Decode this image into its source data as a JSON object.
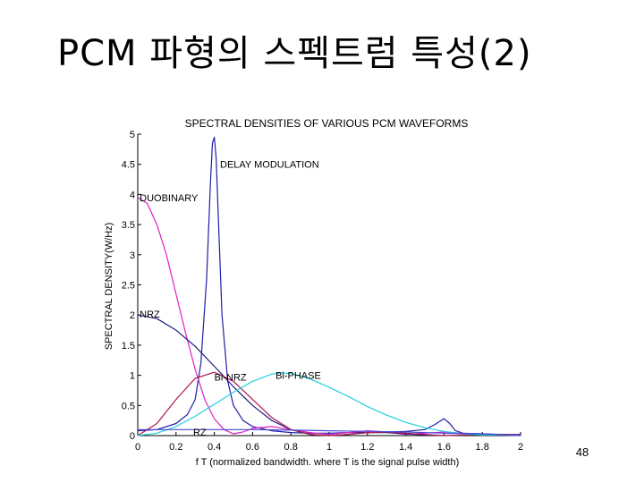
{
  "slide": {
    "title": "PCM 파형의 스펙트럼 특성(2)",
    "page_number": "48"
  },
  "chart_data": {
    "type": "line",
    "title": "SPECTRAL DENSITIES OF VARIOUS PCM WAVEFORMS",
    "xlabel": "f T (normalized bandwidth. where T is  the signal pulse width)",
    "ylabel": "SPECTRAL DENSITY(W/Hz)",
    "xlim": [
      0,
      2
    ],
    "ylim": [
      0,
      5
    ],
    "x_ticks": [
      "0",
      "0.2",
      "0.4",
      "0.6",
      "0.8",
      "1",
      "1.2",
      "1.4",
      "1.6",
      "1.8",
      "2"
    ],
    "y_ticks": [
      "0",
      "0.5",
      "1",
      "1.5",
      "2",
      "2.5",
      "3",
      "3.5",
      "4",
      "4.5",
      "5"
    ],
    "grid": false,
    "legend": "none",
    "series": [
      {
        "name": "DELAY MODULATION",
        "color": "#1f1fa8",
        "x": [
          0,
          0.1,
          0.2,
          0.26,
          0.3,
          0.33,
          0.36,
          0.38,
          0.39,
          0.4,
          0.41,
          0.42,
          0.44,
          0.47,
          0.5,
          0.55,
          0.6,
          0.7,
          0.8,
          0.9,
          1.0,
          1.1,
          1.2,
          1.3,
          1.4,
          1.5,
          1.55,
          1.6,
          1.63,
          1.66,
          1.7,
          1.8,
          1.9,
          2.0
        ],
        "y": [
          0.08,
          0.1,
          0.2,
          0.35,
          0.6,
          1.2,
          2.6,
          4.2,
          4.85,
          4.95,
          4.6,
          3.7,
          2.0,
          0.9,
          0.5,
          0.25,
          0.15,
          0.08,
          0.05,
          0.04,
          0.04,
          0.05,
          0.05,
          0.06,
          0.07,
          0.1,
          0.18,
          0.28,
          0.2,
          0.08,
          0.04,
          0.03,
          0.02,
          0.02
        ]
      },
      {
        "name": "DUOBINARY",
        "color": "#e020c0",
        "x": [
          0,
          0.05,
          0.1,
          0.15,
          0.2,
          0.25,
          0.3,
          0.35,
          0.4,
          0.45,
          0.5,
          0.55,
          0.6,
          0.7,
          0.8,
          0.9,
          1.0,
          1.1,
          1.2,
          1.3,
          1.4,
          1.5,
          1.6,
          1.7,
          1.8,
          1.9,
          2.0
        ],
        "y": [
          3.95,
          3.85,
          3.5,
          3.0,
          2.35,
          1.7,
          1.1,
          0.6,
          0.28,
          0.1,
          0.03,
          0.06,
          0.12,
          0.15,
          0.1,
          0.05,
          0.02,
          0.05,
          0.08,
          0.06,
          0.02,
          0.04,
          0.06,
          0.04,
          0.02,
          0.02,
          0.01
        ]
      },
      {
        "name": "NRZ",
        "color": "#1a1a80",
        "x": [
          0,
          0.1,
          0.2,
          0.3,
          0.4,
          0.5,
          0.6,
          0.7,
          0.8,
          0.9,
          1.0,
          1.1,
          1.2,
          1.3,
          1.4,
          1.5,
          1.6,
          1.7,
          1.8,
          1.9,
          2.0
        ],
        "y": [
          2.0,
          1.94,
          1.75,
          1.48,
          1.15,
          0.81,
          0.5,
          0.25,
          0.1,
          0.02,
          0.0,
          0.02,
          0.05,
          0.05,
          0.03,
          0.01,
          0.0,
          0.01,
          0.02,
          0.02,
          0.01
        ]
      },
      {
        "name": "Bi-NRZ",
        "color": "#b01848",
        "x": [
          0,
          0.1,
          0.2,
          0.3,
          0.4,
          0.5,
          0.6,
          0.7,
          0.8,
          0.9,
          1.0,
          1.1,
          1.2,
          1.3,
          1.4,
          1.5,
          1.6,
          1.7,
          1.8,
          1.9,
          2.0
        ],
        "y": [
          0.0,
          0.2,
          0.6,
          0.95,
          1.05,
          0.9,
          0.6,
          0.3,
          0.1,
          0.02,
          0.0,
          0.02,
          0.05,
          0.06,
          0.04,
          0.02,
          0.0,
          0.01,
          0.02,
          0.02,
          0.01
        ]
      },
      {
        "name": "Bi-PHASE",
        "color": "#20d0e0",
        "x": [
          0,
          0.1,
          0.2,
          0.3,
          0.4,
          0.5,
          0.6,
          0.7,
          0.75,
          0.8,
          0.9,
          1.0,
          1.1,
          1.2,
          1.3,
          1.4,
          1.5,
          1.6,
          1.7,
          1.8,
          1.9,
          2.0
        ],
        "y": [
          0.0,
          0.04,
          0.15,
          0.32,
          0.52,
          0.72,
          0.9,
          1.02,
          1.04,
          1.03,
          0.94,
          0.8,
          0.65,
          0.48,
          0.34,
          0.22,
          0.13,
          0.07,
          0.03,
          0.01,
          0.01,
          0.0
        ]
      },
      {
        "name": "RZ",
        "color": "#4848d8",
        "x": [
          0,
          0.2,
          0.4,
          0.6,
          0.8,
          1.0,
          1.2,
          1.4,
          1.6,
          1.8,
          2.0
        ],
        "y": [
          0.1,
          0.1,
          0.1,
          0.1,
          0.09,
          0.08,
          0.07,
          0.06,
          0.04,
          0.03,
          0.0
        ]
      }
    ],
    "annotations": [
      {
        "text": "DELAY MODULATION",
        "x": 0.43,
        "y": 4.5
      },
      {
        "text": "DUOBINARY",
        "x": 0.01,
        "y": 3.95
      },
      {
        "text": "NRZ",
        "x": 0.01,
        "y": 2.02
      },
      {
        "text": "Bi-NRZ",
        "x": 0.4,
        "y": 0.97
      },
      {
        "text": "Bi-PHASE",
        "x": 0.72,
        "y": 1.0
      },
      {
        "text": "RZ",
        "x": 0.29,
        "y": 0.06
      }
    ]
  }
}
